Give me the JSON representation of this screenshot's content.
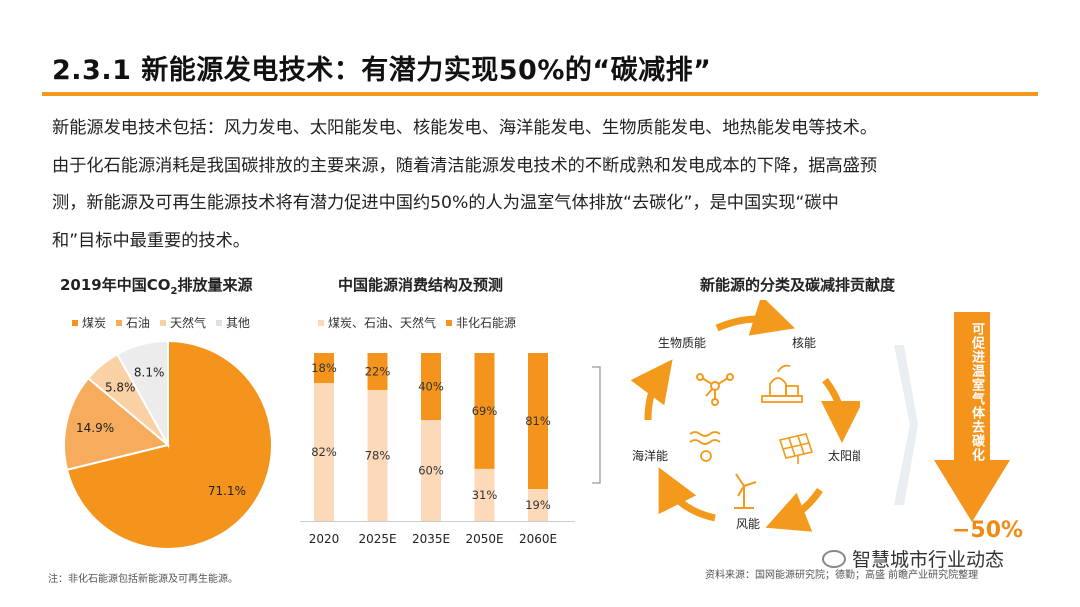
{
  "header": {
    "title": "2.3.1 新能源发电技术：有潜力实现50%的“碳减排”"
  },
  "intro": {
    "line1": "新能源发电技术包括：风力发电、太阳能发电、核能发电、海洋能发电、生物质能发电、地热能发电等技术。",
    "line2": "由于化石能源消耗是我国碳排放的主要来源，随着清洁能源发电技术的不断成熟和发电成本的下降，据高盛预",
    "line3": "测，新能源及可再生能源技术将有潜力促进中国约50%的人为温室气体排放“去碳化”，是中国实现“碳中",
    "line4": "和”目标中最重要的技术。"
  },
  "colors": {
    "accent": "#f39a1c",
    "coal": "#f5941d",
    "oil": "#f7ab5c",
    "gas": "#fad0a5",
    "other": "#ececec",
    "fossil": "#fcd9b8",
    "nonfossil": "#f5941d"
  },
  "pie_chart": {
    "title_part1": "2019年中国CO",
    "title_sub": "2",
    "title_part2": "排放量来源",
    "legend": [
      "煤炭",
      "石油",
      "天然气",
      "其他"
    ]
  },
  "bar_chart": {
    "title": "中国能源消费结构及预测",
    "legend": [
      "煤炭、石油、天然气",
      "非化石能源"
    ]
  },
  "diagram": {
    "title": "新能源的分类及碳减排贡献度",
    "nodes": [
      "生物质能",
      "核能",
      "太阳能",
      "风能",
      "海洋能"
    ],
    "icons": [
      "biomass-molecule-icon",
      "nuclear-plant-icon",
      "solar-panel-icon",
      "wind-turbine-icon",
      "ocean-wave-icon"
    ],
    "arrow_text": "可促进温室气体去碳化",
    "arrow_value": "−50%"
  },
  "footer": {
    "note": "注：非化石能源包括新能源及可再生能源。",
    "source": "资料来源：国网能源研究院；德勤；高盛 前瞻产业研究院整理",
    "watermark": "智慧城市行业动态"
  },
  "chart_data": [
    {
      "type": "pie",
      "title": "2019年中国CO2排放量来源",
      "categories": [
        "煤炭",
        "石油",
        "天然气",
        "其他"
      ],
      "values": [
        71.1,
        14.9,
        5.8,
        8.1
      ],
      "labels": [
        "71.1%",
        "14.9%",
        "5.8%",
        "8.1%"
      ],
      "unit": "%"
    },
    {
      "type": "bar",
      "stacked": true,
      "title": "中国能源消费结构及预测",
      "categories": [
        "2020",
        "2025E",
        "2035E",
        "2050E",
        "2060E"
      ],
      "series": [
        {
          "name": "煤炭、石油、天然气",
          "values": [
            82,
            78,
            60,
            31,
            19
          ],
          "labels": [
            "82%",
            "78%",
            "60%",
            "31%",
            "19%"
          ]
        },
        {
          "name": "非化石能源",
          "values": [
            18,
            22,
            40,
            69,
            81
          ],
          "labels": [
            "18%",
            "22%",
            "40%",
            "69%",
            "81%"
          ]
        }
      ],
      "ylim": [
        0,
        100
      ],
      "unit": "%"
    }
  ]
}
